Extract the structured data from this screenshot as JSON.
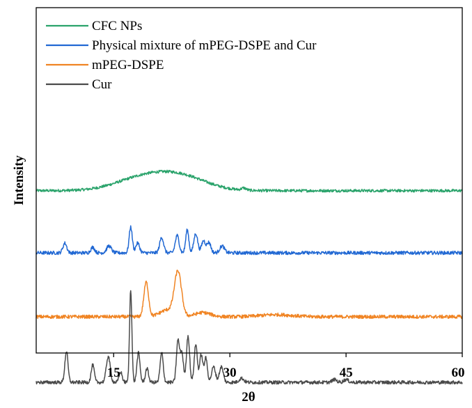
{
  "chart_data": {
    "type": "line",
    "title": "",
    "xlabel": "2θ",
    "ylabel": "Intensity",
    "xlim": [
      5,
      60
    ],
    "x_ticks": [
      15,
      30,
      45,
      60
    ],
    "y_ticks_shown": false,
    "grid": false,
    "legend_position": "top-left",
    "series": [
      {
        "name": "CFC NPs",
        "color": "#2aa36b",
        "baseline": 0.47,
        "peaks": [
          [
            17.5,
            0.012,
            3.0
          ],
          [
            20.0,
            0.022,
            4.0
          ],
          [
            22.5,
            0.025,
            3.5
          ],
          [
            25.0,
            0.012,
            3.0
          ],
          [
            31.8,
            0.006,
            0.3
          ]
        ],
        "noise": 0.004
      },
      {
        "name": "Physical mixture of mPEG-DSPE and Cur",
        "color": "#2168d3",
        "baseline": 0.29,
        "peaks": [
          [
            8.7,
            0.028,
            0.25
          ],
          [
            12.3,
            0.016,
            0.25
          ],
          [
            14.4,
            0.02,
            0.3
          ],
          [
            17.2,
            0.075,
            0.2
          ],
          [
            18.1,
            0.028,
            0.25
          ],
          [
            21.2,
            0.045,
            0.25
          ],
          [
            23.2,
            0.05,
            0.25
          ],
          [
            24.5,
            0.066,
            0.2
          ],
          [
            25.6,
            0.056,
            0.25
          ],
          [
            26.6,
            0.035,
            0.25
          ],
          [
            27.3,
            0.03,
            0.25
          ],
          [
            29.0,
            0.02,
            0.3
          ]
        ],
        "noise": 0.005
      },
      {
        "name": "mPEG-DSPE",
        "color": "#f08423",
        "baseline": 0.105,
        "peaks": [
          [
            19.2,
            0.1,
            0.3
          ],
          [
            23.3,
            0.125,
            0.45
          ],
          [
            22.0,
            0.02,
            1.0
          ],
          [
            26.5,
            0.012,
            1.0
          ],
          [
            36.0,
            0.006,
            2.0
          ]
        ],
        "noise": 0.005
      },
      {
        "name": "Cur",
        "color": "#4a4a4a",
        "baseline": -0.085,
        "peaks": [
          [
            8.9,
            0.09,
            0.2
          ],
          [
            12.3,
            0.05,
            0.2
          ],
          [
            14.3,
            0.075,
            0.25
          ],
          [
            15.9,
            0.03,
            0.2
          ],
          [
            17.2,
            0.27,
            0.15
          ],
          [
            18.2,
            0.085,
            0.2
          ],
          [
            19.3,
            0.04,
            0.2
          ],
          [
            21.2,
            0.085,
            0.2
          ],
          [
            23.3,
            0.12,
            0.2
          ],
          [
            23.8,
            0.085,
            0.2
          ],
          [
            24.6,
            0.135,
            0.2
          ],
          [
            25.6,
            0.11,
            0.2
          ],
          [
            26.3,
            0.08,
            0.2
          ],
          [
            26.9,
            0.07,
            0.2
          ],
          [
            27.9,
            0.045,
            0.25
          ],
          [
            28.9,
            0.045,
            0.25
          ],
          [
            31.5,
            0.012,
            0.3
          ],
          [
            43.5,
            0.008,
            0.3
          ],
          [
            45.0,
            0.008,
            0.3
          ]
        ],
        "noise": 0.005
      }
    ]
  }
}
